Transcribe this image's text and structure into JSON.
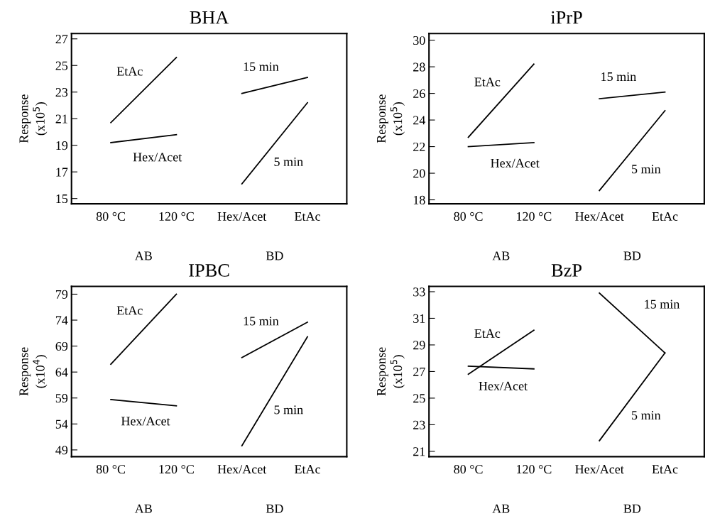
{
  "chart_data": [
    {
      "type": "line",
      "title": "BHA",
      "ylabel": "Response\n(x10$^{5}$)",
      "categories": [
        "80 °C",
        "120 °C",
        "Hex/Acet",
        "EtAc"
      ],
      "annotations": [
        "AB",
        "BD"
      ],
      "ylim": [
        14.6,
        27.4
      ],
      "yticks": [
        15,
        17,
        19,
        21,
        23,
        25,
        27
      ],
      "grid": false,
      "legend": false,
      "marker": "none",
      "line_style": "solid",
      "series": [
        {
          "name": "EtAc",
          "color": "#000000",
          "values": [
            20.7,
            25.6,
            null,
            null
          ]
        },
        {
          "name": "Hex/Acet",
          "color": "#000000",
          "values": [
            19.2,
            19.8,
            null,
            null
          ]
        },
        {
          "name": "15 min",
          "color": "#000000",
          "values": [
            null,
            null,
            22.9,
            24.1
          ]
        },
        {
          "name": "5 min",
          "color": "#000000",
          "values": [
            null,
            null,
            16.1,
            22.2
          ]
        }
      ]
    },
    {
      "type": "line",
      "title": "iPrP",
      "ylabel": "Response\n(x10$^{5}$)",
      "categories": [
        "80 °C",
        "120 °C",
        "Hex/Acet",
        "EtAc"
      ],
      "annotations": [
        "AB",
        "BD"
      ],
      "ylim": [
        17.7,
        30.5
      ],
      "yticks": [
        18,
        20,
        22,
        24,
        26,
        28,
        30
      ],
      "grid": false,
      "legend": false,
      "marker": "none",
      "line_style": "solid",
      "series": [
        {
          "name": "EtAc",
          "color": "#000000",
          "values": [
            22.7,
            28.2,
            null,
            null
          ]
        },
        {
          "name": "Hex/Acet",
          "color": "#000000",
          "values": [
            22.0,
            22.3,
            null,
            null
          ]
        },
        {
          "name": "15 min",
          "color": "#000000",
          "values": [
            null,
            null,
            25.6,
            26.1
          ]
        },
        {
          "name": "5 min",
          "color": "#000000",
          "values": [
            null,
            null,
            18.7,
            24.7
          ]
        }
      ]
    },
    {
      "type": "line",
      "title": "IPBC",
      "ylabel": "Response\n(x10$^{4}$)",
      "categories": [
        "80 °C",
        "120 °C",
        "Hex/Acet",
        "EtAc"
      ],
      "annotations": [
        "AB",
        "BD"
      ],
      "ylim": [
        47.7,
        80.5
      ],
      "yticks": [
        49,
        54,
        59,
        64,
        69,
        74,
        79
      ],
      "grid": false,
      "legend": false,
      "marker": "none",
      "line_style": "solid",
      "series": [
        {
          "name": "EtAc",
          "color": "#000000",
          "values": [
            65.5,
            79.0,
            null,
            null
          ]
        },
        {
          "name": "Hex/Acet",
          "color": "#000000",
          "values": [
            58.7,
            57.5,
            null,
            null
          ]
        },
        {
          "name": "15 min",
          "color": "#000000",
          "values": [
            null,
            null,
            66.8,
            73.6
          ]
        },
        {
          "name": "5 min",
          "color": "#000000",
          "values": [
            null,
            null,
            49.8,
            70.8
          ]
        }
      ]
    },
    {
      "type": "line",
      "title": "BzP",
      "ylabel": "Response\n(x10$^{5}$)",
      "categories": [
        "80 °C",
        "120 °C",
        "Hex/Acet",
        "EtAc"
      ],
      "annotations": [
        "AB",
        "BD"
      ],
      "ylim": [
        20.6,
        33.4
      ],
      "yticks": [
        21,
        23,
        25,
        27,
        29,
        31,
        33
      ],
      "grid": false,
      "legend": false,
      "marker": "none",
      "line_style": "solid",
      "series": [
        {
          "name": "EtAc",
          "color": "#000000",
          "values": [
            26.8,
            30.1,
            null,
            null
          ]
        },
        {
          "name": "Hex/Acet",
          "color": "#000000",
          "values": [
            27.4,
            27.2,
            null,
            null
          ]
        },
        {
          "name": "15 min",
          "color": "#000000",
          "values": [
            null,
            null,
            32.9,
            28.4
          ]
        },
        {
          "name": "5 min",
          "color": "#000000",
          "values": [
            null,
            null,
            21.8,
            28.4
          ]
        }
      ]
    }
  ]
}
